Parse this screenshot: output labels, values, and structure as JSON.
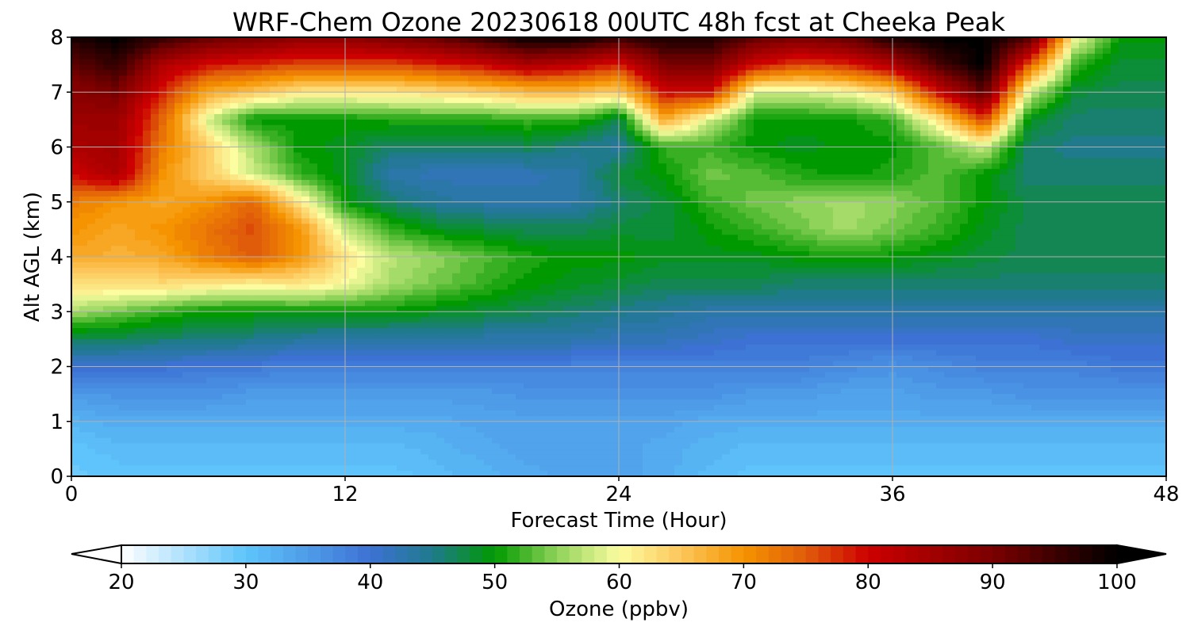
{
  "chart_data": {
    "type": "heatmap",
    "title": "WRF-Chem Ozone  20230618 00UTC 48h fcst at Cheeka Peak",
    "xlabel": "Forecast Time (Hour)",
    "ylabel": "Alt AGL (km)",
    "xlim": [
      0,
      48
    ],
    "ylim": [
      0,
      8
    ],
    "x_ticks": [
      "0",
      "12",
      "24",
      "36",
      "48"
    ],
    "y_ticks": [
      "0",
      "1",
      "2",
      "3",
      "4",
      "5",
      "6",
      "7",
      "8"
    ],
    "grid": true,
    "colorbar": {
      "label": "Ozone  (ppbv)",
      "range": [
        20,
        100
      ],
      "extend": "both",
      "ticks": [
        "20",
        "30",
        "40",
        "50",
        "60",
        "70",
        "80",
        "90",
        "100"
      ],
      "color_stops": [
        {
          "value": 20,
          "color": "#ffffff"
        },
        {
          "value": 30,
          "color": "#5ec4fb"
        },
        {
          "value": 40,
          "color": "#3d72d4"
        },
        {
          "value": 45,
          "color": "#1f7a8c"
        },
        {
          "value": 50,
          "color": "#009900"
        },
        {
          "value": 55,
          "color": "#8fd35a"
        },
        {
          "value": 60,
          "color": "#fcfca0"
        },
        {
          "value": 65,
          "color": "#fcc65a"
        },
        {
          "value": 70,
          "color": "#f59300"
        },
        {
          "value": 75,
          "color": "#e05c0a"
        },
        {
          "value": 80,
          "color": "#cc0000"
        },
        {
          "value": 90,
          "color": "#7a0000"
        },
        {
          "value": 100,
          "color": "#000000"
        }
      ]
    },
    "x": [
      0,
      2,
      4,
      6,
      8,
      10,
      12,
      14,
      16,
      18,
      20,
      22,
      24,
      26,
      28,
      30,
      32,
      34,
      36,
      38,
      40,
      42,
      44,
      46,
      48
    ],
    "y": [
      0,
      0.5,
      1,
      1.5,
      2,
      2.5,
      3,
      3.5,
      4,
      4.5,
      5,
      5.5,
      6,
      6.5,
      7,
      7.5,
      8
    ],
    "z": [
      [
        29,
        30,
        30,
        30,
        30,
        30,
        30,
        30,
        31,
        32,
        33,
        34,
        34,
        33,
        31,
        30,
        30,
        30,
        30,
        30,
        30,
        30,
        30,
        30,
        30
      ],
      [
        30,
        31,
        31,
        31,
        31,
        31,
        31,
        31,
        32,
        33,
        34,
        34,
        34,
        33,
        32,
        31,
        31,
        31,
        31,
        31,
        31,
        31,
        31,
        31,
        31
      ],
      [
        32,
        33,
        33,
        33,
        33,
        33,
        33,
        33,
        33,
        34,
        34,
        34,
        34,
        34,
        33,
        33,
        33,
        33,
        33,
        33,
        33,
        33,
        33,
        33,
        33
      ],
      [
        35,
        36,
        36,
        36,
        35,
        35,
        35,
        35,
        35,
        35,
        36,
        36,
        36,
        36,
        36,
        35,
        35,
        34,
        34,
        35,
        35,
        36,
        36,
        36,
        36
      ],
      [
        40,
        40,
        40,
        39,
        39,
        38,
        38,
        38,
        38,
        38,
        38,
        38,
        38,
        38,
        38,
        38,
        38,
        37,
        36,
        37,
        38,
        38,
        38,
        39,
        39
      ],
      [
        47,
        47,
        46,
        46,
        45,
        44,
        43,
        43,
        43,
        43,
        43,
        43,
        42,
        42,
        41,
        40,
        40,
        40,
        40,
        40,
        40,
        40,
        41,
        41,
        41
      ],
      [
        56,
        54,
        52,
        50,
        50,
        50,
        50,
        50,
        49,
        48,
        47,
        46,
        45,
        44,
        43,
        43,
        43,
        43,
        43,
        43,
        43,
        43,
        43,
        43,
        43
      ],
      [
        63,
        63,
        63,
        62,
        61,
        62,
        60,
        56,
        54,
        52,
        50,
        49,
        48,
        47,
        47,
        47,
        46,
        46,
        46,
        46,
        46,
        46,
        46,
        46,
        46
      ],
      [
        68,
        67,
        68,
        72,
        75,
        70,
        62,
        57,
        55,
        53,
        51,
        50,
        50,
        49,
        49,
        49,
        50,
        51,
        50,
        49,
        48,
        47,
        47,
        47,
        47
      ],
      [
        70,
        68,
        70,
        73,
        76,
        70,
        58,
        52,
        49,
        48,
        47,
        47,
        48,
        48,
        50,
        52,
        54,
        56,
        54,
        52,
        49,
        47,
        47,
        47,
        47
      ],
      [
        72,
        70,
        68,
        70,
        74,
        62,
        50,
        46,
        44,
        43,
        43,
        43,
        46,
        48,
        52,
        54,
        55,
        56,
        55,
        53,
        50,
        47,
        47,
        47,
        47
      ],
      [
        80,
        84,
        70,
        64,
        58,
        52,
        49,
        43,
        42,
        42,
        42,
        43,
        48,
        50,
        54,
        53,
        51,
        50,
        51,
        53,
        50,
        46,
        46,
        46,
        46
      ],
      [
        84,
        85,
        72,
        64,
        56,
        50,
        49,
        46,
        46,
        46,
        47,
        45,
        44,
        52,
        52,
        50,
        49,
        50,
        50,
        53,
        58,
        46,
        45,
        45,
        45
      ],
      [
        86,
        86,
        74,
        58,
        50,
        50,
        50,
        51,
        51,
        51,
        52,
        52,
        47,
        68,
        58,
        50,
        50,
        50,
        52,
        62,
        77,
        49,
        46,
        46,
        46
      ],
      [
        88,
        90,
        78,
        68,
        65,
        62,
        62,
        62,
        63,
        64,
        66,
        66,
        64,
        80,
        80,
        58,
        58,
        60,
        64,
        80,
        93,
        58,
        48,
        47,
        47
      ],
      [
        92,
        96,
        84,
        79,
        78,
        76,
        76,
        76,
        78,
        80,
        84,
        82,
        78,
        90,
        90,
        80,
        76,
        78,
        84,
        94,
        100,
        75,
        52,
        48,
        48
      ],
      [
        98,
        100,
        96,
        92,
        90,
        88,
        88,
        90,
        92,
        96,
        100,
        100,
        96,
        98,
        98,
        92,
        90,
        92,
        98,
        100,
        100,
        94,
        60,
        50,
        50
      ]
    ]
  }
}
